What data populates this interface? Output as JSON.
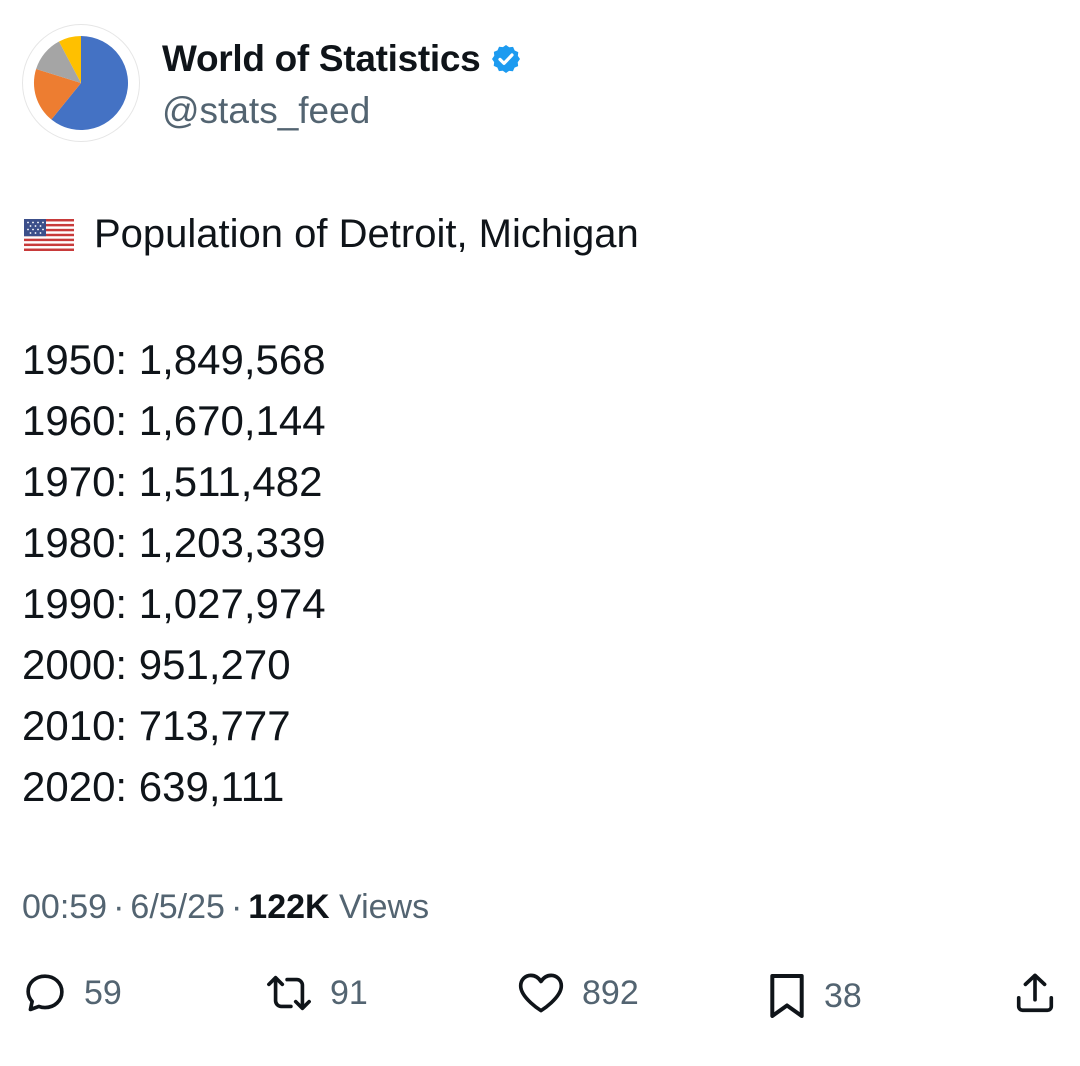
{
  "account": {
    "name": "World of Statistics",
    "handle": "@stats_feed",
    "verified": true,
    "avatar_icon": "pie-chart-logo",
    "avatar_colors": [
      "#4472C4",
      "#ED7D31",
      "#A5A5A5",
      "#FFC000"
    ]
  },
  "post": {
    "flag_icon": "us-flag-icon",
    "title": "Population of Detroit, Michigan",
    "lines": [
      "1950: 1,849,568",
      "1960: 1,670,144",
      "1970: 1,511,482",
      "1980: 1,203,339",
      "1990: 1,027,974",
      "2000: 951,270",
      "2010: 713,777",
      "2020: 639,111"
    ]
  },
  "meta": {
    "time": "00:59",
    "date": "6/5/25",
    "views_count": "122K",
    "views_label": "Views"
  },
  "actions": {
    "replies": "59",
    "reposts": "91",
    "likes": "892",
    "bookmarks": "38"
  },
  "colors": {
    "text": "#0f1419",
    "secondary": "#536471",
    "verified": "#1d9bf0"
  }
}
